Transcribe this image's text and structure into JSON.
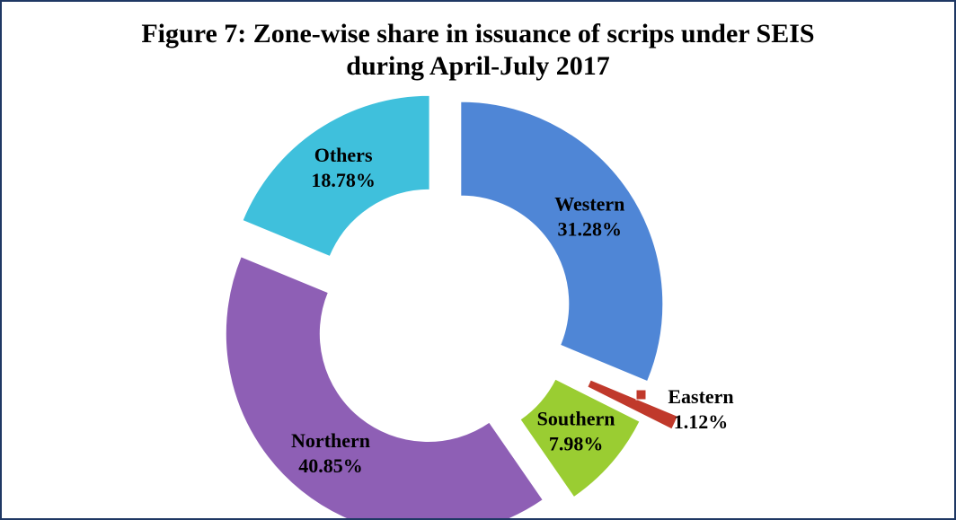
{
  "chart_data": {
    "type": "donut",
    "title": "Figure 7: Zone-wise share in issuance of scrips under SEIS during April-July 2017",
    "categories": [
      "Western",
      "Eastern",
      "Southern",
      "Northern",
      "Others"
    ],
    "values": [
      31.28,
      1.12,
      7.98,
      40.85,
      18.78
    ],
    "value_labels": [
      "31.28%",
      "1.12%",
      "7.98%",
      "40.85%",
      "18.78%"
    ],
    "colors": [
      "#4f86d6",
      "#c0392b",
      "#9acd32",
      "#8e5fb5",
      "#3fc0dc"
    ]
  }
}
